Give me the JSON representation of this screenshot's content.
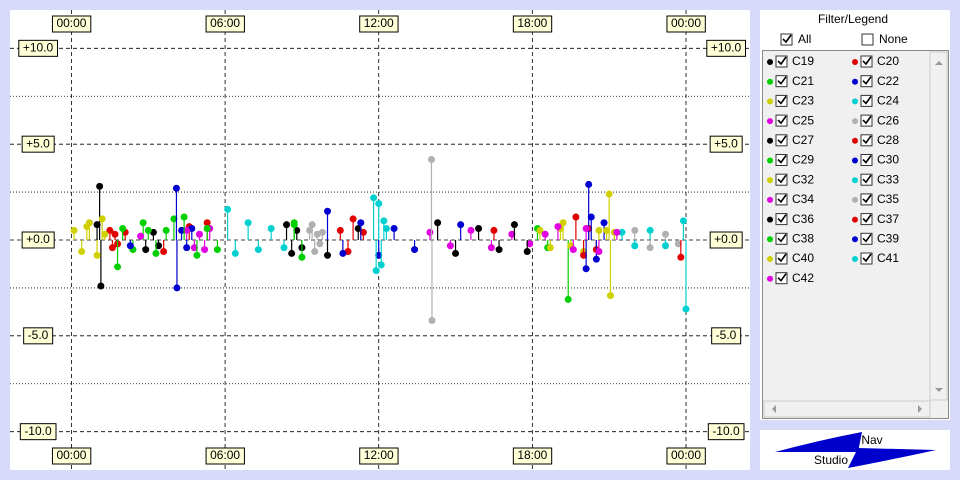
{
  "chart_data": {
    "type": "scatter",
    "xlim": [
      -2.4,
      26.5
    ],
    "ylim": [
      -12,
      12
    ],
    "xticks": [
      {
        "value": 0,
        "label": "00:00"
      },
      {
        "value": 6,
        "label": "06:00"
      },
      {
        "value": 12,
        "label": "12:00"
      },
      {
        "value": 18,
        "label": "18:00"
      },
      {
        "value": 24,
        "label": "00:00"
      }
    ],
    "yticks": [
      {
        "value": 10,
        "label": "+10.0"
      },
      {
        "value": 5,
        "label": "+5.0"
      },
      {
        "value": 0,
        "label": "+0.0"
      },
      {
        "value": -5,
        "label": "-5.0"
      },
      {
        "value": -10,
        "label": "-10.0"
      }
    ],
    "minor_yticks": [
      7.5,
      2.5,
      -2.5,
      -7.5
    ],
    "grid": true,
    "series": [
      {
        "name": "C19",
        "color": "#000000",
        "x": [
          1.0,
          1.1,
          1.15,
          2.9,
          3.2,
          3.4
        ],
        "values": [
          0.8,
          2.8,
          -2.4,
          -0.5,
          0.4,
          -0.3
        ]
      },
      {
        "name": "C20",
        "color": "#e00000",
        "x": [
          1.5,
          1.6,
          1.7,
          1.8,
          2.1,
          4.6
        ],
        "values": [
          0.5,
          -0.4,
          0.3,
          -0.2,
          0.4,
          0.7
        ]
      },
      {
        "name": "C21",
        "color": "#00d000",
        "x": [
          2.0,
          2.4,
          2.8,
          3.3,
          3.7,
          4.0
        ],
        "values": [
          0.6,
          -0.5,
          0.9,
          -0.7,
          0.5,
          1.1
        ]
      },
      {
        "name": "C22",
        "color": "#0000d0",
        "x": [
          4.1,
          4.12,
          4.3,
          4.5,
          4.7,
          2.3
        ],
        "values": [
          2.7,
          -2.5,
          0.5,
          -0.4,
          0.6,
          -0.3
        ]
      },
      {
        "name": "C23",
        "color": "#d0d000",
        "x": [
          0.1,
          0.4,
          0.7,
          1.0,
          1.2,
          1.3
        ],
        "values": [
          0.5,
          -0.6,
          0.9,
          -0.8,
          1.1,
          0.3
        ]
      },
      {
        "name": "C24",
        "color": "#00d0d0",
        "x": [
          6.1,
          6.4,
          6.9,
          7.3,
          7.8,
          8.3
        ],
        "values": [
          1.6,
          -0.7,
          0.9,
          -0.5,
          0.6,
          -0.4
        ]
      },
      {
        "name": "C25",
        "color": "#e000e0",
        "x": [
          4.5,
          4.8,
          5.0,
          5.2,
          5.4,
          2.7
        ],
        "values": [
          0.5,
          -0.4,
          0.3,
          -0.5,
          0.6,
          0.2
        ]
      },
      {
        "name": "C26",
        "color": "#b0b0b0",
        "x": [
          9.3,
          9.5,
          9.6,
          9.7,
          9.4,
          9.8
        ],
        "values": [
          0.5,
          -0.6,
          0.3,
          -0.2,
          0.8,
          0.4
        ]
      },
      {
        "name": "C27",
        "color": "#000000",
        "x": [
          8.4,
          8.6,
          8.8,
          9.0,
          10.0,
          11.2
        ],
        "values": [
          0.8,
          -0.7,
          0.5,
          -0.4,
          -0.8,
          0.6
        ]
      },
      {
        "name": "C28",
        "color": "#e00000",
        "x": [
          10.5,
          10.8,
          11.0,
          11.4,
          5.3,
          3.6
        ],
        "values": [
          0.5,
          -0.6,
          1.1,
          0.4,
          0.9,
          -0.6
        ]
      },
      {
        "name": "C29",
        "color": "#00d000",
        "x": [
          4.4,
          4.9,
          5.3,
          5.7,
          8.7,
          9.0
        ],
        "values": [
          1.2,
          -0.8,
          0.6,
          -0.5,
          0.8,
          -0.9
        ]
      },
      {
        "name": "C30",
        "color": "#0000d0",
        "x": [
          10.0,
          10.6,
          11.3,
          12.0,
          12.6,
          13.4
        ],
        "values": [
          1.5,
          -0.7,
          0.9,
          -0.8,
          0.6,
          -0.5
        ]
      },
      {
        "name": "C32",
        "color": "#d0d000",
        "x": [
          21.0,
          21.05,
          19.2,
          20.0,
          20.6,
          21.2
        ],
        "values": [
          2.4,
          -2.9,
          0.9,
          -0.6,
          0.5,
          0.4
        ]
      },
      {
        "name": "C33",
        "color": "#00d0d0",
        "x": [
          11.8,
          11.9,
          12.0,
          12.1,
          12.2,
          12.3
        ],
        "values": [
          2.2,
          -1.6,
          1.9,
          -1.3,
          1.0,
          0.6
        ]
      },
      {
        "name": "C34",
        "color": "#e000e0",
        "x": [
          14.0,
          14.8,
          15.6,
          16.4,
          17.2,
          17.9
        ],
        "values": [
          0.4,
          -0.3,
          0.5,
          -0.4,
          0.3,
          -0.2
        ]
      },
      {
        "name": "C35",
        "color": "#b0b0b0",
        "x": [
          14.06,
          14.08,
          22.0,
          22.6,
          23.2,
          23.7
        ],
        "values": [
          4.2,
          -4.2,
          0.5,
          -0.4,
          0.3,
          -0.2
        ]
      },
      {
        "name": "C36",
        "color": "#000000",
        "x": [
          14.3,
          15.0,
          15.9,
          16.7,
          17.3,
          17.8
        ],
        "values": [
          0.9,
          -0.7,
          0.6,
          -0.5,
          0.8,
          -0.6
        ]
      },
      {
        "name": "C37",
        "color": "#e00000",
        "x": [
          19.7,
          20.0,
          20.2,
          20.5,
          23.8,
          16.5
        ],
        "values": [
          1.2,
          -0.8,
          0.6,
          -0.5,
          -0.9,
          0.5
        ]
      },
      {
        "name": "C38",
        "color": "#00d000",
        "x": [
          19.4,
          18.2,
          18.6,
          8.7,
          1.8,
          3.0
        ],
        "values": [
          -3.1,
          0.6,
          -0.4,
          0.9,
          -1.4,
          0.5
        ]
      },
      {
        "name": "C39",
        "color": "#0000d0",
        "x": [
          20.2,
          20.1,
          20.3,
          20.5,
          20.8,
          15.2
        ],
        "values": [
          2.9,
          -1.5,
          1.2,
          -1.0,
          0.9,
          0.8
        ]
      },
      {
        "name": "C40",
        "color": "#d0d000",
        "x": [
          18.3,
          18.7,
          19.1,
          19.5,
          20.9,
          0.6
        ],
        "values": [
          0.5,
          -0.4,
          0.6,
          -0.3,
          0.5,
          0.7
        ]
      },
      {
        "name": "C41",
        "color": "#00d0d0",
        "x": [
          21.5,
          22.0,
          22.6,
          23.2,
          23.9,
          24.0
        ],
        "values": [
          0.4,
          -0.3,
          0.5,
          -0.3,
          1.0,
          -3.6
        ]
      },
      {
        "name": "C42",
        "color": "#e000e0",
        "x": [
          19.0,
          19.6,
          20.1,
          20.6,
          21.3,
          18.5
        ],
        "values": [
          0.7,
          -0.5,
          0.6,
          -0.6,
          0.4,
          0.3
        ]
      }
    ]
  },
  "legend_panel": {
    "title": "Filter/Legend",
    "all": "All",
    "none": "None"
  },
  "logo": {
    "top": "Nav",
    "bottom": "Studio"
  }
}
